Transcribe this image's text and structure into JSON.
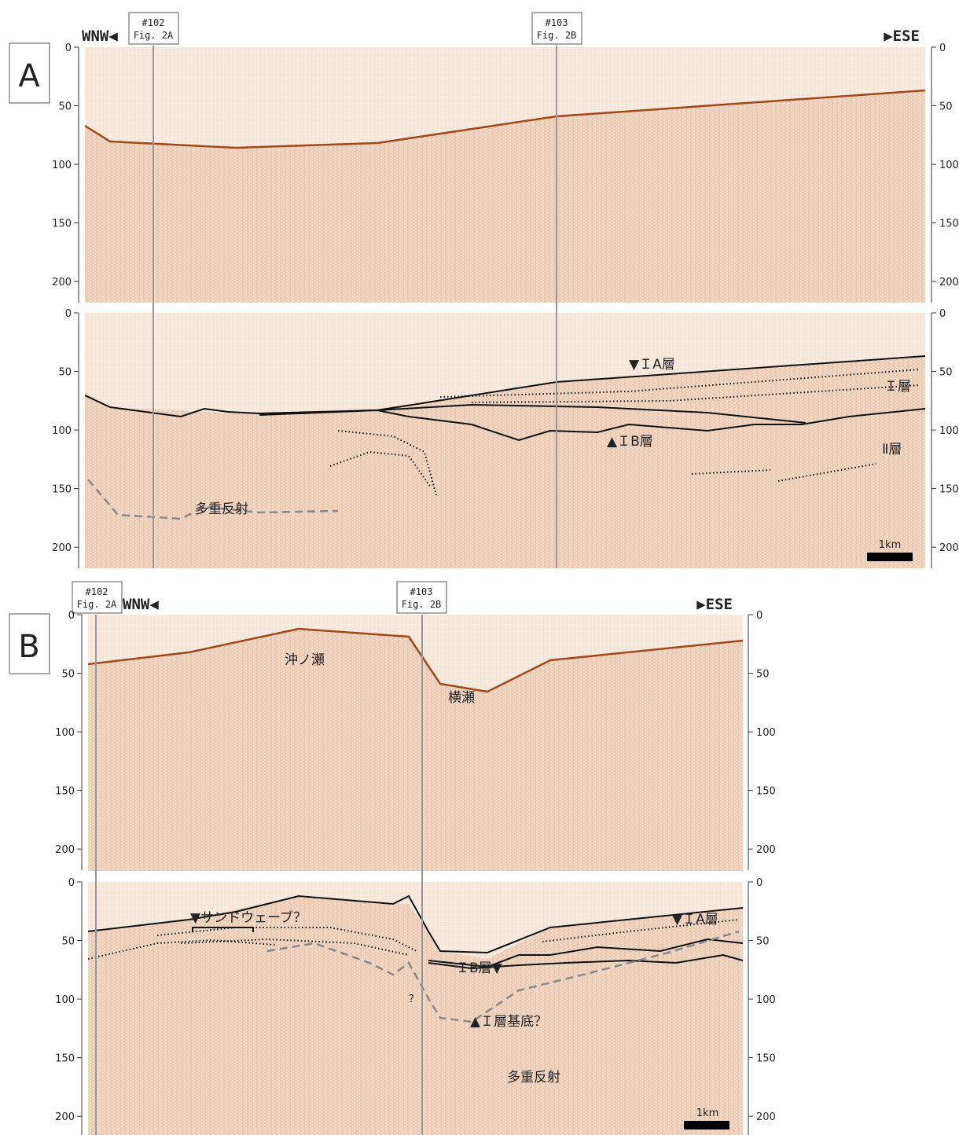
{
  "depth_axis": {
    "ylim": [
      0,
      218
    ],
    "yticks": [
      0,
      50,
      100,
      150,
      200
    ]
  },
  "panels": [
    {
      "label": "A",
      "left": "WNW◀",
      "right": "▶ESE",
      "markers": [
        {
          "line": "#102",
          "ref": "Fig. 2A"
        },
        {
          "line": "#103",
          "ref": "Fig. 2B"
        }
      ],
      "annotations": [
        "▼ＩA層",
        "Ｉ層",
        "▲ＩB層",
        "Ⅱ層",
        "多重反射"
      ],
      "scale": "1km"
    },
    {
      "label": "B",
      "left": "WNW◀",
      "right": "▶ESE",
      "markers": [
        {
          "line": "#102",
          "ref": "Fig. 2A"
        },
        {
          "line": "#103",
          "ref": "Fig. 2B"
        }
      ],
      "annotations": [
        "沖ノ瀬",
        "横瀬",
        "▼サンドウェーブ？",
        "▼ＩA層",
        "ＩB層▼",
        "？",
        "▲Ｉ層基底？",
        "多重反射"
      ],
      "scale": "1km"
    }
  ]
}
